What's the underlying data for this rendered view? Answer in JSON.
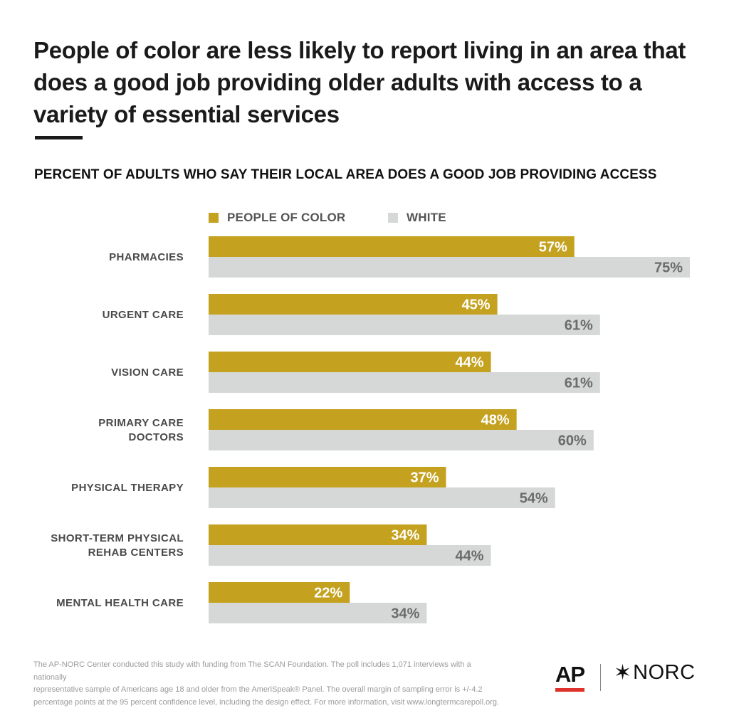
{
  "header": {
    "title": "People of color are less likely to report living in an area that does a good job providing older adults with access to a variety of essential services",
    "subtitle": "PERCENT OF ADULTS WHO SAY THEIR LOCAL AREA DOES A GOOD JOB PROVIDING ACCESS"
  },
  "legend": [
    {
      "label": "PEOPLE OF COLOR",
      "color": "#c4a11e"
    },
    {
      "label": "WHITE",
      "color": "#d5d8d6"
    }
  ],
  "chart_data": {
    "type": "bar",
    "orientation": "horizontal",
    "categories": [
      [
        "PHARMACIES"
      ],
      [
        "URGENT CARE"
      ],
      [
        "VISION CARE"
      ],
      [
        "PRIMARY CARE",
        "DOCTORS"
      ],
      [
        "PHYSICAL THERAPY"
      ],
      [
        "SHORT-TERM PHYSICAL",
        "REHAB CENTERS"
      ],
      [
        "MENTAL HEALTH CARE"
      ]
    ],
    "series": [
      {
        "name": "PEOPLE OF COLOR",
        "color": "#c4a11e",
        "label_color": "#ffffff",
        "values": [
          57,
          45,
          44,
          48,
          37,
          34,
          22
        ],
        "labels": [
          "57%",
          "45%",
          "44%",
          "48%",
          "37%",
          "34%",
          "22%"
        ]
      },
      {
        "name": "WHITE",
        "color": "#d5d8d6",
        "label_color": "#6b6b6b",
        "values": [
          75,
          61,
          61,
          60,
          54,
          44,
          34
        ],
        "labels": [
          "75%",
          "61%",
          "61%",
          "60%",
          "54%",
          "44%",
          "34%"
        ]
      }
    ],
    "xlim": [
      0,
      75
    ]
  },
  "footer": {
    "note_lines": [
      "The AP-NORC Center conducted this study with funding from The SCAN Foundation. The poll includes 1,071 interviews with a nationally",
      "representative sample of Americans age 18 and older from the AmeriSpeak® Panel. The overall margin of sampling error is +/-4.2",
      "percentage points at the 95 percent confidence level, including the design effect. For more information, visit www.longtermcarepoll.org."
    ],
    "logo_ap": "AP",
    "logo_norc": "NORC"
  }
}
